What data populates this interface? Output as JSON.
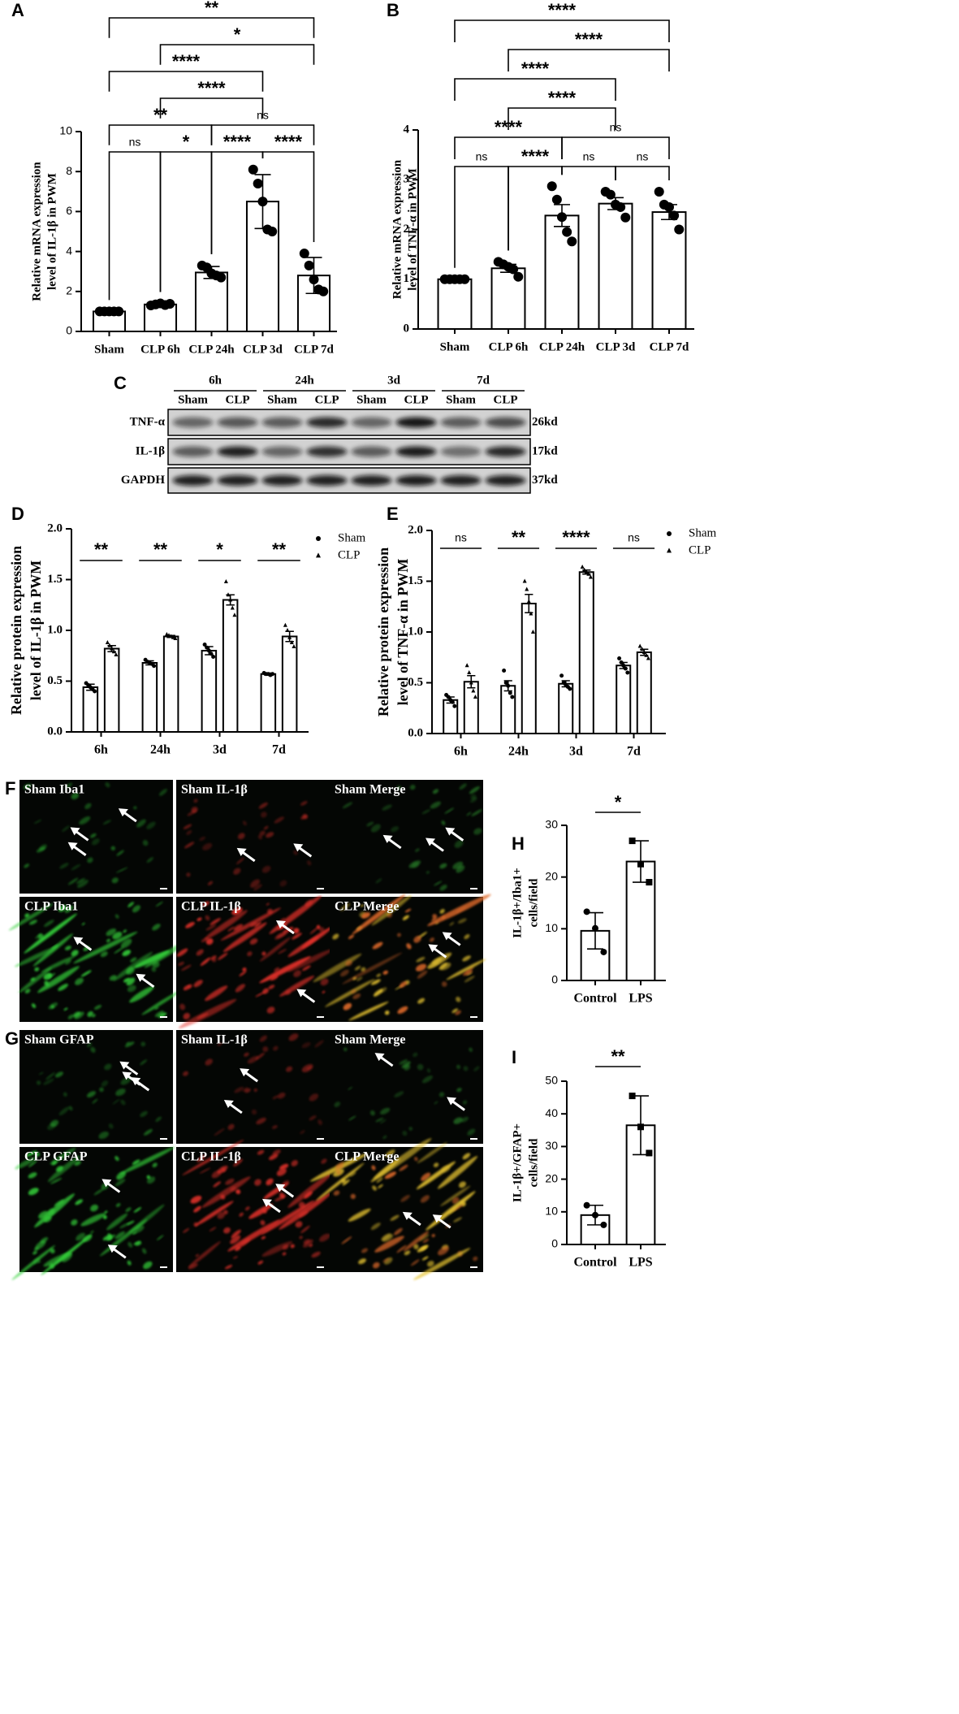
{
  "chart_data": [
    {
      "panel": "A",
      "type": "bar",
      "categories": [
        "Sham",
        "CLP 6h",
        "CLP 24h",
        "CLP 3d",
        "CLP 7d"
      ],
      "values": [
        1.0,
        1.35,
        2.95,
        6.5,
        2.8
      ],
      "errors": [
        0.03,
        0.08,
        0.3,
        1.35,
        0.9
      ],
      "points": [
        [
          1,
          1,
          1,
          1,
          1
        ],
        [
          1.3,
          1.35,
          1.4,
          1.32,
          1.38
        ],
        [
          3.3,
          3.2,
          2.9,
          2.8,
          2.7
        ],
        [
          8.1,
          7.4,
          6.5,
          5.1,
          5.0
        ],
        [
          3.9,
          3.3,
          2.6,
          2.1,
          2.0
        ]
      ],
      "color": "#000000",
      "ylabel": [
        "Relative mRNA expression",
        "level of IL-1β in PWM"
      ],
      "ylim": [
        0,
        10
      ],
      "yticks": [
        0,
        2,
        4,
        6,
        8,
        10
      ],
      "comparisons": [
        {
          "pair": [
            "Sham",
            "CLP 6h"
          ],
          "label": "ns"
        },
        {
          "pair": [
            "CLP 6h",
            "CLP 24h"
          ],
          "label": "*"
        },
        {
          "pair": [
            "CLP 24h",
            "CLP 3d"
          ],
          "label": "****"
        },
        {
          "pair": [
            "CLP 3d",
            "CLP 7d"
          ],
          "label": "****"
        },
        {
          "pair": [
            "Sham",
            "CLP 24h"
          ],
          "label": "**"
        },
        {
          "pair": [
            "CLP 24h",
            "CLP 7d"
          ],
          "label": "ns"
        },
        {
          "pair": [
            "CLP 6h",
            "CLP 3d"
          ],
          "label": "****"
        },
        {
          "pair": [
            "Sham",
            "CLP 3d"
          ],
          "label": "****"
        },
        {
          "pair": [
            "CLP 6h",
            "CLP 7d"
          ],
          "label": "*"
        },
        {
          "pair": [
            "Sham",
            "CLP 7d"
          ],
          "label": "**"
        }
      ]
    },
    {
      "panel": "B",
      "type": "bar",
      "categories": [
        "Sham",
        "CLP 6h",
        "CLP 24h",
        "CLP 3d",
        "CLP 7d"
      ],
      "values": [
        1.0,
        1.22,
        2.28,
        2.52,
        2.35
      ],
      "errors": [
        0.01,
        0.08,
        0.22,
        0.12,
        0.15
      ],
      "points": [
        [
          1,
          1,
          1,
          1,
          1
        ],
        [
          1.35,
          1.3,
          1.25,
          1.2,
          1.05
        ],
        [
          2.87,
          2.6,
          2.25,
          1.95,
          1.76
        ],
        [
          2.76,
          2.7,
          2.5,
          2.45,
          2.24
        ],
        [
          2.76,
          2.5,
          2.45,
          2.28,
          2.0
        ]
      ],
      "color": "#000000",
      "ylabel": [
        "Relative mRNA expression",
        "level of TNF-α in PWM"
      ],
      "ylim": [
        0,
        4
      ],
      "yticks": [
        0,
        1,
        2,
        3,
        4
      ],
      "comparisons": [
        {
          "pair": [
            "Sham",
            "CLP 6h"
          ],
          "label": "ns"
        },
        {
          "pair": [
            "CLP 6h",
            "CLP 24h"
          ],
          "label": "****"
        },
        {
          "pair": [
            "CLP 24h",
            "CLP 3d"
          ],
          "label": "ns"
        },
        {
          "pair": [
            "CLP 3d",
            "CLP 7d"
          ],
          "label": "ns"
        },
        {
          "pair": [
            "Sham",
            "CLP 24h"
          ],
          "label": "****"
        },
        {
          "pair": [
            "CLP 24h",
            "CLP 7d"
          ],
          "label": "ns"
        },
        {
          "pair": [
            "CLP 6h",
            "CLP 3d"
          ],
          "label": "****"
        },
        {
          "pair": [
            "Sham",
            "CLP 3d"
          ],
          "label": "****"
        },
        {
          "pair": [
            "CLP 6h",
            "CLP 7d"
          ],
          "label": "****"
        },
        {
          "pair": [
            "Sham",
            "CLP 7d"
          ],
          "label": "****"
        }
      ]
    },
    {
      "panel": "D",
      "type": "bar",
      "categories": [
        "6h",
        "24h",
        "3d",
        "7d"
      ],
      "series": [
        {
          "name": "Sham",
          "marker": "circle",
          "values": [
            0.44,
            0.68,
            0.8,
            0.57
          ],
          "errors": [
            0.03,
            0.02,
            0.04,
            0.01
          ],
          "points": [
            [
              0.48,
              0.46,
              0.44,
              0.42,
              0.4
            ],
            [
              0.71,
              0.69,
              0.68,
              0.67,
              0.65
            ],
            [
              0.86,
              0.83,
              0.8,
              0.77,
              0.74
            ],
            [
              0.58,
              0.57,
              0.57,
              0.56,
              0.57
            ]
          ]
        },
        {
          "name": "CLP",
          "marker": "triangle",
          "values": [
            0.82,
            0.94,
            1.3,
            0.94
          ],
          "errors": [
            0.03,
            0.01,
            0.05,
            0.05
          ],
          "points": [
            [
              0.88,
              0.85,
              0.82,
              0.79,
              0.76
            ],
            [
              0.96,
              0.95,
              0.94,
              0.93,
              0.92
            ],
            [
              1.48,
              1.35,
              1.3,
              1.22,
              1.15
            ],
            [
              1.05,
              1.0,
              0.93,
              0.88,
              0.84
            ]
          ]
        }
      ],
      "color": "#000000",
      "ylabel": [
        "Relative protein expression",
        "level of IL-1β in PWM"
      ],
      "ylim": [
        0,
        2
      ],
      "yticks": [
        {
          "value": 0,
          "label": "0.0"
        },
        0.5,
        {
          "value": 1,
          "label": "1.0"
        },
        1.5,
        {
          "value": 2,
          "label": "2.0"
        }
      ],
      "comparisons": [
        {
          "category": "6h",
          "label": "**"
        },
        {
          "category": "24h",
          "label": "**"
        },
        {
          "category": "3d",
          "label": "*"
        },
        {
          "category": "7d",
          "label": "**"
        }
      ]
    },
    {
      "panel": "E",
      "type": "bar",
      "categories": [
        "6h",
        "24h",
        "3d",
        "7d"
      ],
      "series": [
        {
          "name": "Sham",
          "marker": "circle",
          "values": [
            0.33,
            0.47,
            0.49,
            0.67
          ],
          "errors": [
            0.03,
            0.05,
            0.03,
            0.03
          ],
          "points": [
            [
              0.38,
              0.36,
              0.33,
              0.31,
              0.27
            ],
            [
              0.62,
              0.5,
              0.47,
              0.4,
              0.36
            ],
            [
              0.57,
              0.5,
              0.48,
              0.46,
              0.44
            ],
            [
              0.74,
              0.7,
              0.67,
              0.64,
              0.6
            ]
          ]
        },
        {
          "name": "CLP",
          "marker": "triangle",
          "values": [
            0.51,
            1.28,
            1.59,
            0.8
          ],
          "errors": [
            0.06,
            0.09,
            0.02,
            0.03
          ],
          "points": [
            [
              0.67,
              0.6,
              0.5,
              0.42,
              0.36
            ],
            [
              1.5,
              1.42,
              1.3,
              1.18,
              1.0
            ],
            [
              1.64,
              1.61,
              1.59,
              1.57,
              1.54
            ],
            [
              0.86,
              0.83,
              0.8,
              0.77,
              0.74
            ]
          ]
        }
      ],
      "color": "#000000",
      "ylabel": [
        "Relative protein expression",
        "level of TNF-α in PWM"
      ],
      "ylim": [
        0,
        2
      ],
      "yticks": [
        {
          "value": 0,
          "label": "0.0"
        },
        0.5,
        {
          "value": 1,
          "label": "1.0"
        },
        1.5,
        {
          "value": 2,
          "label": "2.0"
        }
      ],
      "comparisons": [
        {
          "category": "6h",
          "label": "ns"
        },
        {
          "category": "24h",
          "label": "**"
        },
        {
          "category": "3d",
          "label": "****"
        },
        {
          "category": "7d",
          "label": "ns"
        }
      ]
    },
    {
      "panel": "H",
      "type": "bar",
      "categories": [
        "Control",
        "LPS"
      ],
      "values": [
        9.6,
        23.0
      ],
      "errors": [
        3.5,
        4.0
      ],
      "points": [
        [
          13.3,
          10.1,
          5.5
        ],
        [
          27.0,
          22.5,
          19.0
        ]
      ],
      "markers": [
        "circle",
        "square"
      ],
      "color": "#000000",
      "ylabel": [
        "IL-1β+/Iba1+",
        "cells/field"
      ],
      "ylim": [
        0,
        30
      ],
      "yticks": [
        0,
        10,
        20,
        30
      ],
      "comparisons": [
        {
          "pair": [
            "Control",
            "LPS"
          ],
          "label": "*"
        }
      ]
    },
    {
      "panel": "I",
      "type": "bar",
      "categories": [
        "Control",
        "LPS"
      ],
      "values": [
        9.0,
        36.5
      ],
      "errors": [
        3.0,
        9.0
      ],
      "points": [
        [
          12,
          9,
          6
        ],
        [
          45.5,
          36,
          28
        ]
      ],
      "markers": [
        "circle",
        "square"
      ],
      "color": "#000000",
      "ylabel": [
        "IL-1β+/GFAP+",
        "cells/field"
      ],
      "ylim": [
        0,
        50
      ],
      "yticks": [
        0,
        10,
        20,
        30,
        40,
        50
      ],
      "comparisons": [
        {
          "pair": [
            "Control",
            "LPS"
          ],
          "label": "**"
        }
      ]
    }
  ],
  "blot": {
    "panel": "C",
    "groups": [
      "6h",
      "24h",
      "3d",
      "7d"
    ],
    "lanes": [
      "Sham",
      "CLP",
      "Sham",
      "CLP",
      "Sham",
      "CLP",
      "Sham",
      "CLP"
    ],
    "rows": [
      {
        "protein": "TNF-α",
        "size": "26kd"
      },
      {
        "protein": "IL-1β",
        "size": "17kd"
      },
      {
        "protein": "GAPDH",
        "size": "37kd"
      }
    ]
  },
  "micrographs": [
    {
      "panel": "F",
      "labels": [
        [
          "Sham Iba1",
          "Sham IL-1β",
          "Sham Merge"
        ],
        [
          "CLP Iba1",
          "CLP IL-1β",
          "CLP Merge"
        ]
      ]
    },
    {
      "panel": "G",
      "labels": [
        [
          "Sham GFAP",
          "Sham IL-1β",
          "Sham Merge"
        ],
        [
          "CLP GFAP",
          "CLP IL-1β",
          "CLP Merge"
        ]
      ]
    }
  ]
}
